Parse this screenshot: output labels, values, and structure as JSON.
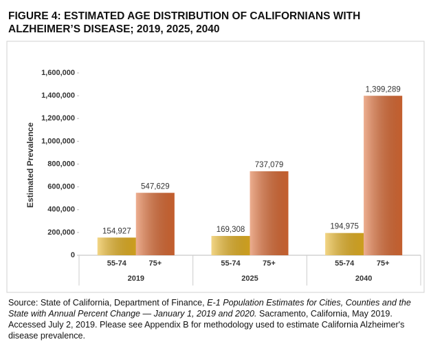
{
  "chart_data": {
    "type": "grouped_bar",
    "title": "FIGURE 4: ESTIMATED AGE DISTRIBUTION OF CALIFORNIANS WITH ALZHEIMER’S DISEASE; 2019, 2025, 2040",
    "y_label": "Estimated Prevalence",
    "groups": [
      "2019",
      "2025",
      "2040"
    ],
    "series": [
      {
        "name": "55-74",
        "color": "#e8b423",
        "values": [
          154927,
          169308,
          194975
        ],
        "value_labels": [
          "154,927",
          "169,308",
          "194,975"
        ]
      },
      {
        "name": "75+",
        "color": "#de6c35",
        "values": [
          547629,
          737079,
          1399289
        ],
        "value_labels": [
          "547,629",
          "737,079",
          "1,399,289"
        ]
      }
    ],
    "ylim": [
      0,
      1600000
    ],
    "yticks": [
      0,
      {
        "value": 200000,
        "label": "200,000"
      },
      {
        "value": 400000,
        "label": "400,000"
      },
      {
        "value": 600000,
        "label": "600,000"
      },
      {
        "value": 800000,
        "label": "800,000"
      },
      {
        "value": 1000000,
        "label": "1,000,000"
      },
      {
        "value": 1200000,
        "label": "1,200,000"
      },
      {
        "value": 1400000,
        "label": "1,400,000"
      },
      {
        "value": 1600000,
        "label": "1,600,000"
      }
    ],
    "grid": false
  },
  "source": {
    "prefix": "Source: State of California, Department of Finance, ",
    "title": "E-1 Population Estimates for Cities, Counties and the State with Annual Percent Change — January 1, 2019 and 2020.",
    "rest": " Sacramento, California, May 2019. Accessed July 2, 2019. Please see Appendix B for methodology used to estimate California Alzheimer's disease prevalence."
  }
}
